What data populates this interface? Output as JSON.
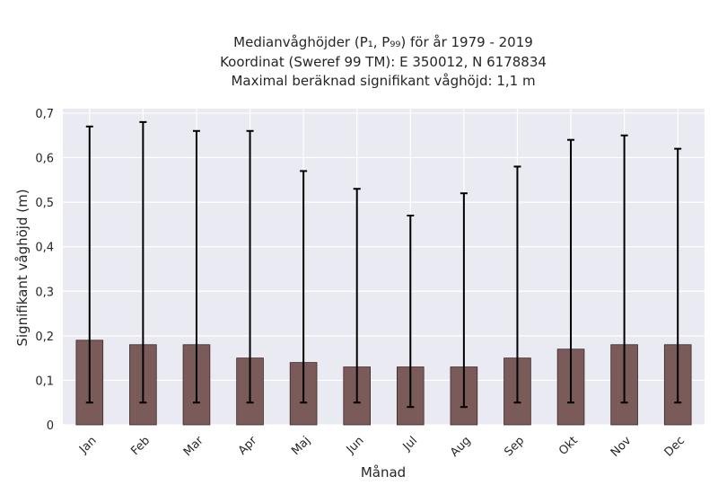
{
  "chart_data": {
    "type": "bar",
    "title_lines": [
      "Medianvåghöjder (P₁, P₉₉) för år 1979 - 2019",
      "Koordinat (Sweref 99 TM): E 350012, N 6178834",
      "Maximal beräknad signifikant våghöjd: 1,1 m"
    ],
    "xlabel": "Månad",
    "ylabel": "Signifikant våghöjd (m)",
    "categories": [
      "Jan",
      "Feb",
      "Mar",
      "Apr",
      "Maj",
      "Jun",
      "Jul",
      "Aug",
      "Sep",
      "Okt",
      "Nov",
      "Dec"
    ],
    "values": [
      0.19,
      0.18,
      0.18,
      0.15,
      0.14,
      0.13,
      0.13,
      0.13,
      0.15,
      0.17,
      0.18,
      0.18
    ],
    "p1": [
      0.05,
      0.05,
      0.05,
      0.05,
      0.05,
      0.05,
      0.04,
      0.04,
      0.05,
      0.05,
      0.05,
      0.05
    ],
    "p99": [
      0.67,
      0.68,
      0.66,
      0.66,
      0.57,
      0.53,
      0.47,
      0.52,
      0.58,
      0.64,
      0.65,
      0.62
    ],
    "ylim": [
      0,
      0.71
    ],
    "yticks": [
      "0",
      "0,1",
      "0,2",
      "0,3",
      "0,4",
      "0,5",
      "0,6",
      "0,7"
    ],
    "ytick_values": [
      0,
      0.1,
      0.2,
      0.3,
      0.4,
      0.5,
      0.6,
      0.7
    ],
    "grid": true,
    "colors": {
      "bar": "#7b5a5a",
      "background": "#eaeaf2",
      "errorbar": "#000000"
    }
  }
}
